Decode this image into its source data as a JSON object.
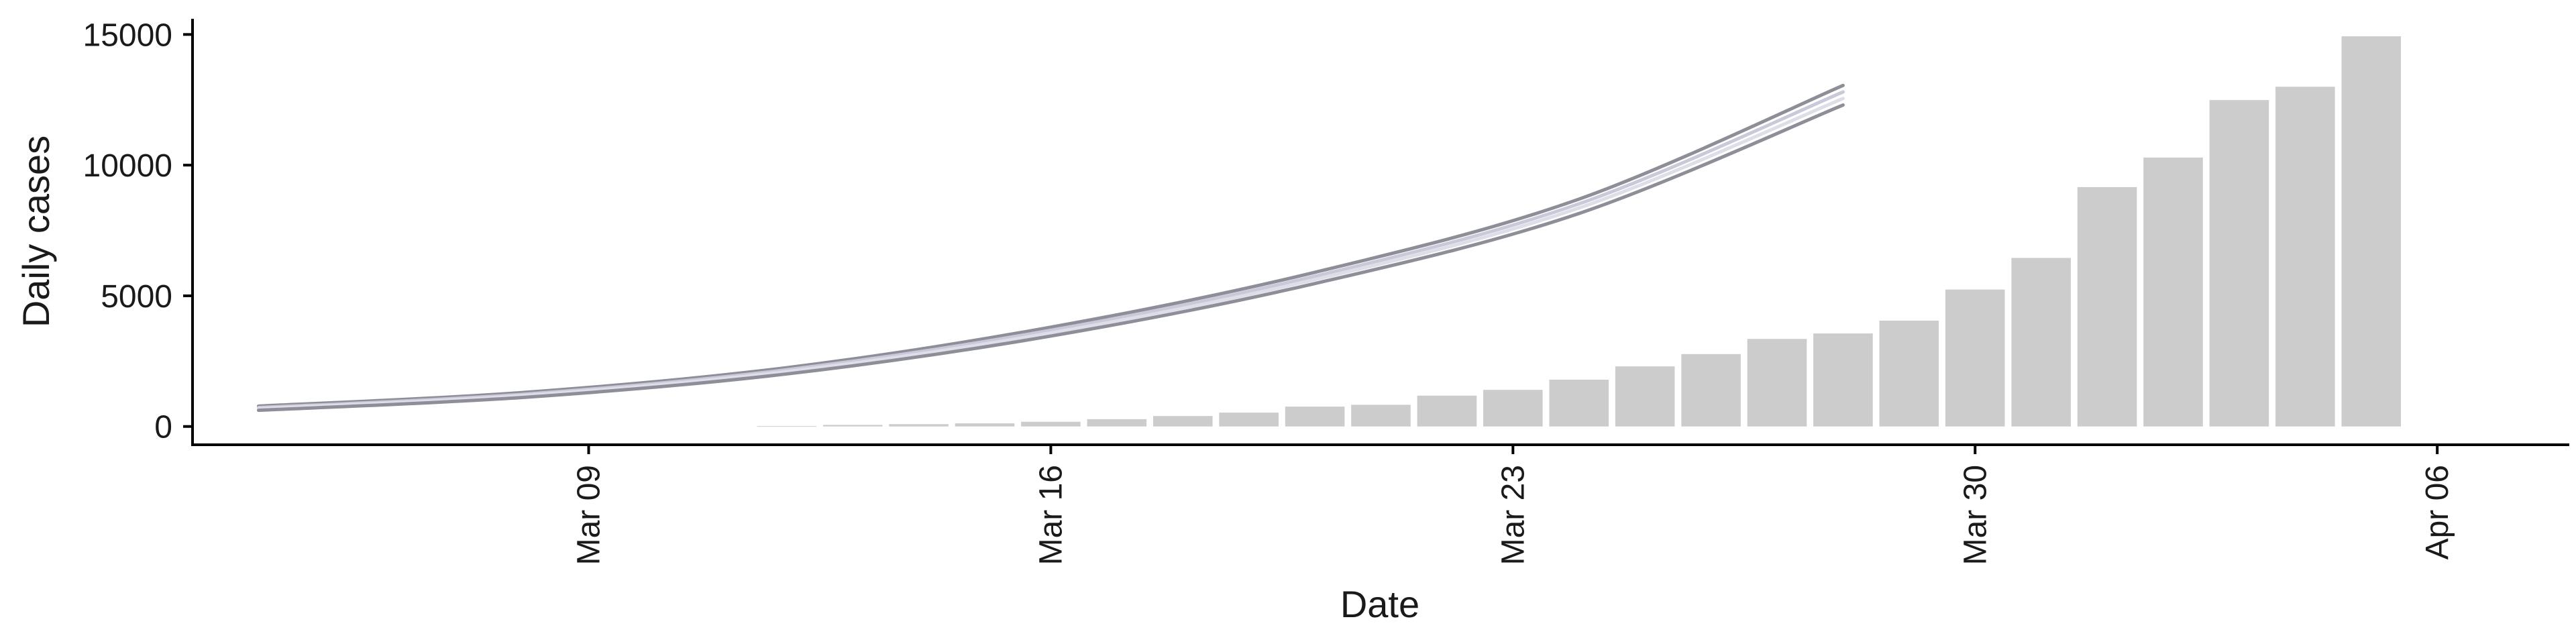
{
  "chart_data": {
    "type": "bar",
    "title": "",
    "xlabel": "Date",
    "ylabel": "Daily cases",
    "ylim": [
      -700,
      15600
    ],
    "yticks": [
      0,
      5000,
      10000,
      15000
    ],
    "xlim": [
      "2020-03-03",
      "2020-04-08"
    ],
    "xticks": [
      {
        "date": "2020-03-09",
        "label": "Mar 09"
      },
      {
        "date": "2020-03-16",
        "label": "Mar 16"
      },
      {
        "date": "2020-03-23",
        "label": "Mar 23"
      },
      {
        "date": "2020-03-30",
        "label": "Mar 30"
      },
      {
        "date": "2020-04-06",
        "label": "Apr 06"
      }
    ],
    "bar_color": "#cccccc",
    "bars": [
      {
        "date": "2020-03-12",
        "value": 15
      },
      {
        "date": "2020-03-13",
        "value": 60
      },
      {
        "date": "2020-03-14",
        "value": 90
      },
      {
        "date": "2020-03-15",
        "value": 120
      },
      {
        "date": "2020-03-16",
        "value": 180
      },
      {
        "date": "2020-03-17",
        "value": 280
      },
      {
        "date": "2020-03-18",
        "value": 400
      },
      {
        "date": "2020-03-19",
        "value": 530
      },
      {
        "date": "2020-03-20",
        "value": 760
      },
      {
        "date": "2020-03-21",
        "value": 830
      },
      {
        "date": "2020-03-22",
        "value": 1180
      },
      {
        "date": "2020-03-23",
        "value": 1400
      },
      {
        "date": "2020-03-24",
        "value": 1790
      },
      {
        "date": "2020-03-25",
        "value": 2300
      },
      {
        "date": "2020-03-26",
        "value": 2770
      },
      {
        "date": "2020-03-27",
        "value": 3350
      },
      {
        "date": "2020-03-28",
        "value": 3560
      },
      {
        "date": "2020-03-29",
        "value": 4050
      },
      {
        "date": "2020-03-30",
        "value": 5240
      },
      {
        "date": "2020-03-31",
        "value": 6450
      },
      {
        "date": "2020-04-01",
        "value": 9160
      },
      {
        "date": "2020-04-02",
        "value": 10290
      },
      {
        "date": "2020-04-03",
        "value": 12490
      },
      {
        "date": "2020-04-04",
        "value": 13000
      },
      {
        "date": "2020-04-05",
        "value": 14930
      }
    ],
    "curves": [
      {
        "color": "#8e8e99",
        "points": [
          [
            "2020-03-04",
            780
          ],
          [
            "2020-03-08",
            1300
          ],
          [
            "2020-03-12",
            2250
          ],
          [
            "2020-03-16",
            3800
          ],
          [
            "2020-03-20",
            5900
          ],
          [
            "2020-03-24",
            8700
          ],
          [
            "2020-03-28",
            13050
          ]
        ]
      },
      {
        "color": "#c9c9d9",
        "points": [
          [
            "2020-03-04",
            720
          ],
          [
            "2020-03-08",
            1230
          ],
          [
            "2020-03-12",
            2170
          ],
          [
            "2020-03-16",
            3680
          ],
          [
            "2020-03-20",
            5750
          ],
          [
            "2020-03-24",
            8520
          ],
          [
            "2020-03-28",
            12800
          ]
        ]
      },
      {
        "color": "#dedee8",
        "points": [
          [
            "2020-03-04",
            680
          ],
          [
            "2020-03-08",
            1180
          ],
          [
            "2020-03-12",
            2100
          ],
          [
            "2020-03-16",
            3580
          ],
          [
            "2020-03-20",
            5620
          ],
          [
            "2020-03-24",
            8360
          ],
          [
            "2020-03-28",
            12550
          ]
        ]
      },
      {
        "color": "#8e8e99",
        "points": [
          [
            "2020-03-04",
            620
          ],
          [
            "2020-03-08",
            1110
          ],
          [
            "2020-03-12",
            2010
          ],
          [
            "2020-03-16",
            3460
          ],
          [
            "2020-03-20",
            5470
          ],
          [
            "2020-03-24",
            8150
          ],
          [
            "2020-03-28",
            12300
          ]
        ]
      }
    ]
  }
}
